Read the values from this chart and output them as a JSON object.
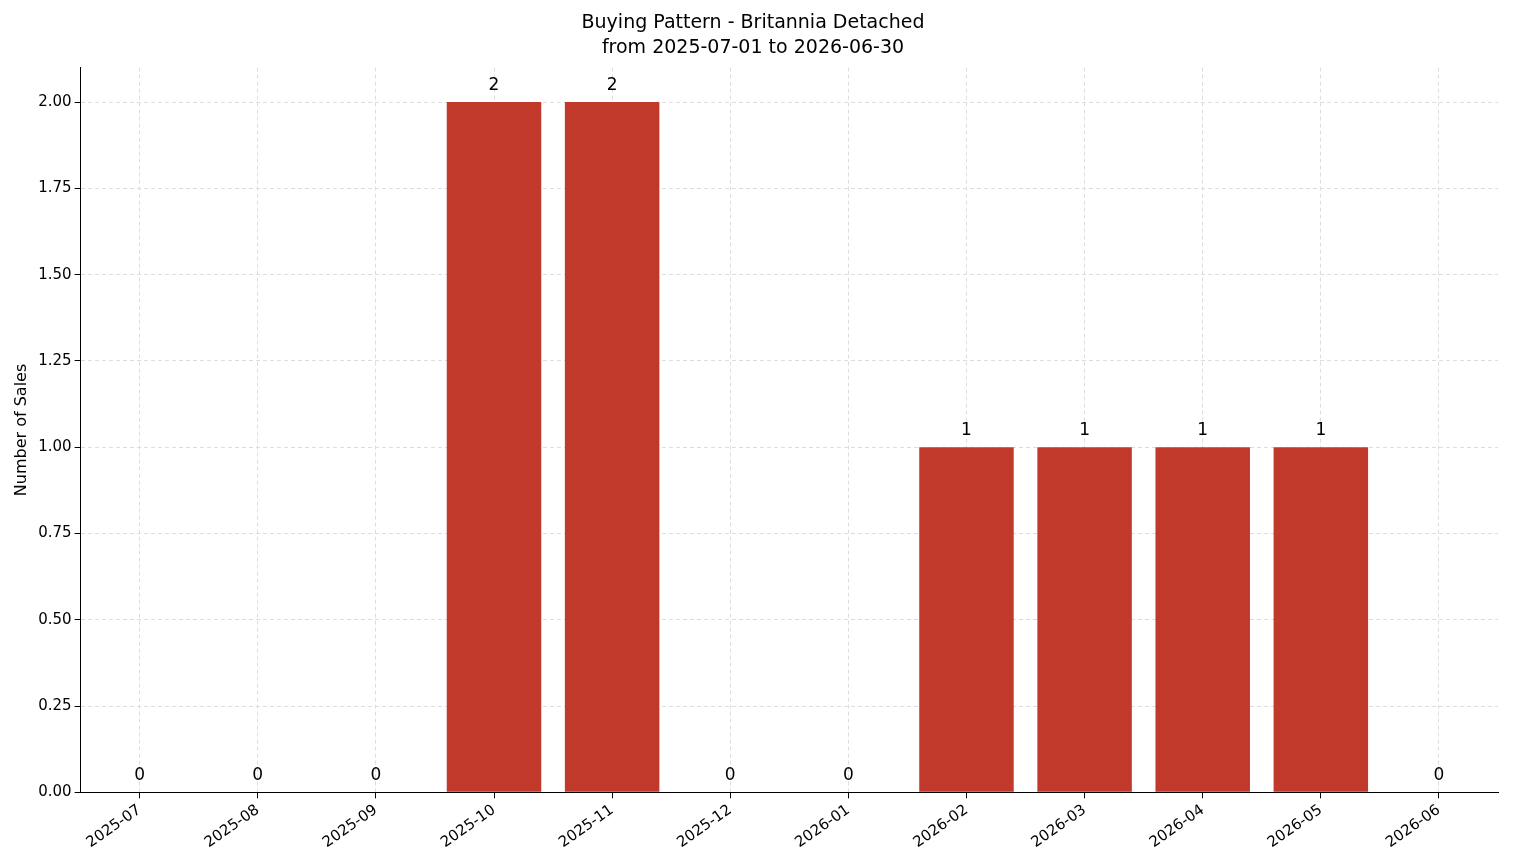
{
  "chart_data": {
    "type": "bar",
    "title": "Buying Pattern - Britannia Detached",
    "subtitle": "from 2025-07-01 to 2026-06-30",
    "ylabel": "Number of Sales",
    "categories": [
      "2025-07",
      "2025-08",
      "2025-09",
      "2025-10",
      "2025-11",
      "2025-12",
      "2026-01",
      "2026-02",
      "2026-03",
      "2026-04",
      "2026-05",
      "2026-06"
    ],
    "values": [
      0,
      0,
      0,
      2,
      2,
      0,
      0,
      1,
      1,
      1,
      1,
      0
    ],
    "color": "#c0392b",
    "ylim": [
      0,
      2.1
    ],
    "yticks": [
      {
        "value": 0,
        "label": "0.00"
      },
      {
        "value": 0.25,
        "label": "0.25"
      },
      {
        "value": 0.5,
        "label": "0.50"
      },
      {
        "value": 0.75,
        "label": "0.75"
      },
      {
        "value": 1,
        "label": "1.00"
      },
      {
        "value": 1.25,
        "label": "1.25"
      },
      {
        "value": 1.5,
        "label": "1.50"
      },
      {
        "value": 1.75,
        "label": "1.75"
      },
      {
        "value": 2,
        "label": "2.00"
      }
    ],
    "grid": true,
    "data_labels": true
  }
}
